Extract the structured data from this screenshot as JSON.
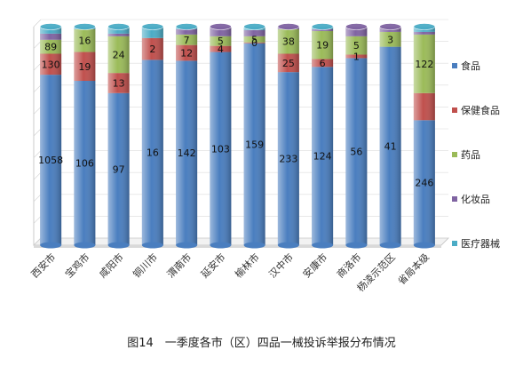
{
  "caption": "图14　一季度各市（区）四品一械投诉举报分布情况",
  "chart_data": {
    "type": "bar",
    "stacked": "percent",
    "ylim": [
      0,
      100
    ],
    "legend_position": "right",
    "grid": true,
    "categories": [
      "西安市",
      "宝鸡市",
      "咸阳市",
      "铜川市",
      "渭南市",
      "延安市",
      "榆林市",
      "汉中市",
      "安康市",
      "商洛市",
      "杨凌示范区",
      "省局本级"
    ],
    "series": [
      {
        "name": "食品",
        "color": "#4a7ebf",
        "values": [
          78.0,
          75.2,
          69.6,
          84.8,
          84.4,
          88.4,
          92.4,
          79.2,
          81.6,
          85.6,
          90.8,
          57.2
        ],
        "labels": [
          "1058",
          "106",
          "97",
          "16",
          "142",
          "103",
          "159",
          "233",
          "124",
          "56",
          "41",
          "246"
        ]
      },
      {
        "name": "保健食品",
        "color": "#c0504d",
        "values": [
          9.6,
          13.2,
          9.2,
          10.0,
          7.2,
          2.8,
          0.4,
          8.4,
          3.6,
          1.6,
          0.0,
          12.4
        ],
        "labels": [
          "130",
          "19",
          "13",
          "2",
          "12",
          "4",
          "0",
          "25",
          "6",
          "1",
          "",
          ""
        ]
      },
      {
        "name": "药品",
        "color": "#9bbb59",
        "values": [
          6.4,
          10.4,
          16.8,
          0.0,
          4.8,
          4.4,
          2.8,
          11.2,
          12.8,
          8.4,
          6.8,
          26.8
        ],
        "labels": [
          "89",
          "16",
          "24",
          "",
          "7",
          "5",
          "5",
          "38",
          "19",
          "5",
          "3",
          "122"
        ]
      },
      {
        "name": "化妆品",
        "color": "#8064a2",
        "values": [
          2.8,
          0.0,
          1.2,
          0.0,
          2.4,
          4.4,
          2.8,
          1.2,
          0.8,
          4.4,
          2.4,
          1.2
        ],
        "labels": [
          "",
          "",
          "",
          "",
          "",
          "",
          "",
          "",
          "",
          "",
          "",
          ""
        ]
      },
      {
        "name": "医疗器械",
        "color": "#4bacc6",
        "values": [
          3.2,
          1.2,
          3.2,
          5.2,
          1.2,
          0.0,
          1.6,
          0.0,
          1.2,
          0.0,
          0.0,
          2.4
        ],
        "labels": [
          "",
          "",
          "",
          "",
          "",
          "",
          "",
          "",
          "",
          "",
          "",
          ""
        ]
      }
    ]
  }
}
